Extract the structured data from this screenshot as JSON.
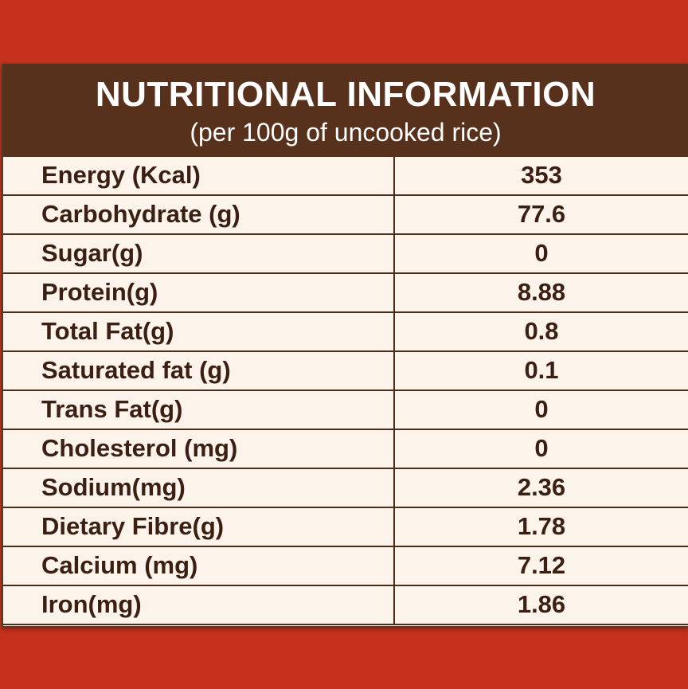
{
  "header": {
    "title": "NUTRITIONAL INFORMATION",
    "subtitle": "(per 100g of uncooked rice)"
  },
  "nutrients": [
    {
      "name": "Energy (Kcal)",
      "value": "353"
    },
    {
      "name": "Carbohydrate (g)",
      "value": "77.6"
    },
    {
      "name": "Sugar(g)",
      "value": "0"
    },
    {
      "name": "Protein(g)",
      "value": "8.88"
    },
    {
      "name": "Total Fat(g)",
      "value": "0.8"
    },
    {
      "name": "Saturated fat (g)",
      "value": "0.1"
    },
    {
      "name": "Trans Fat(g)",
      "value": "0"
    },
    {
      "name": "Cholesterol (mg)",
      "value": "0"
    },
    {
      "name": "Sodium(mg)",
      "value": "2.36"
    },
    {
      "name": "Dietary Fibre(g)",
      "value": "1.78"
    },
    {
      "name": "Calcium (mg)",
      "value": "7.12"
    },
    {
      "name": "Iron(mg)",
      "value": "1.86"
    }
  ],
  "colors": {
    "background": "#c5311c",
    "header": "#57311c",
    "table": "#fcf3ea",
    "text": "#3a1f12"
  }
}
